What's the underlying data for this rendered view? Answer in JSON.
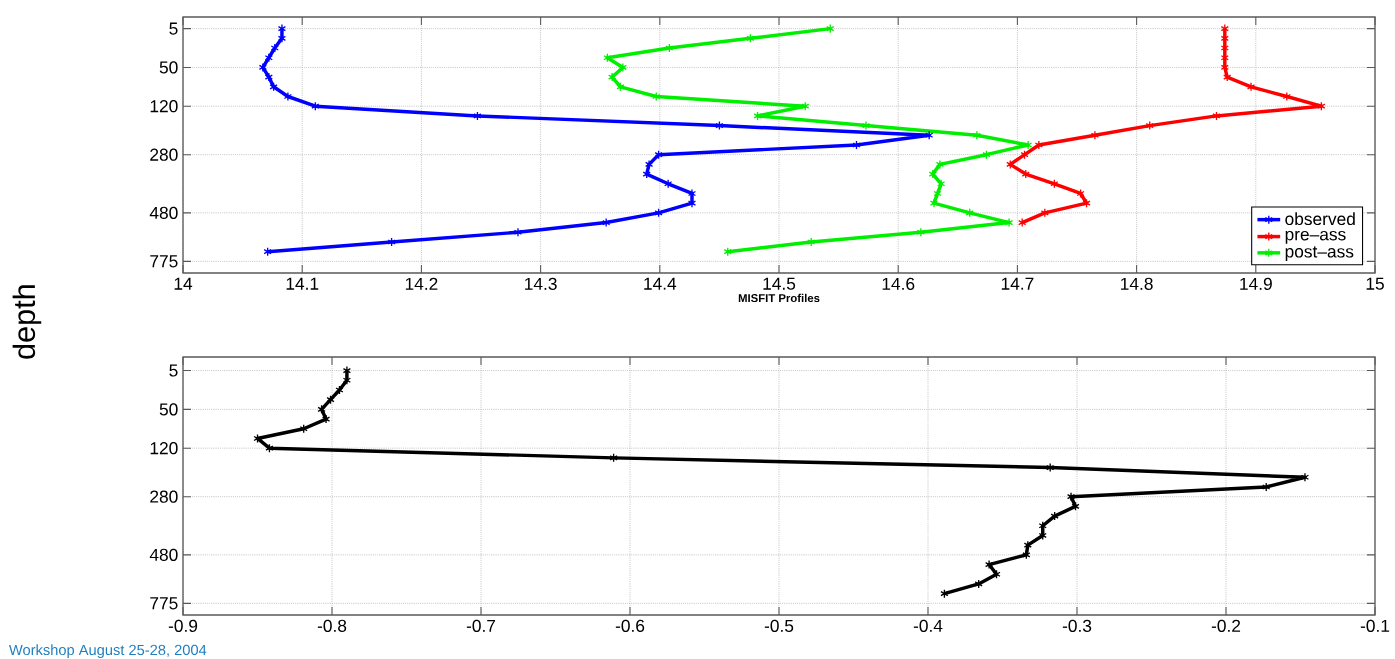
{
  "chart_data": [
    {
      "type": "line",
      "orientation": "horizontal",
      "xlabel": "MISFIT Profiles",
      "ylabel": "depth",
      "xlim": [
        14,
        15
      ],
      "xticks": [
        14,
        14.1,
        14.2,
        14.3,
        14.4,
        14.5,
        14.6,
        14.7,
        14.8,
        14.9,
        15
      ],
      "categories": [
        "5",
        null,
        null,
        null,
        "50",
        null,
        null,
        null,
        "120",
        null,
        null,
        null,
        null,
        "280",
        null,
        null,
        null,
        null,
        null,
        "480",
        null,
        null,
        null,
        null,
        "775"
      ],
      "grid": true,
      "legend": "bottom right",
      "marker": "cross",
      "line_style": "solid",
      "series": [
        {
          "name": "observed",
          "color": "#0000ff",
          "values": [
            14.083,
            14.083,
            14.077,
            14.072,
            14.067,
            14.072,
            14.076,
            14.088,
            14.111,
            14.247,
            14.45,
            14.626,
            14.565,
            14.399,
            14.391,
            14.389,
            14.407,
            14.427,
            14.427,
            14.399,
            14.355,
            14.281,
            14.175,
            14.071,
            null
          ]
        },
        {
          "name": "pre–ass",
          "color": "#ff0000",
          "values": [
            14.874,
            14.874,
            14.874,
            14.874,
            14.874,
            14.876,
            14.896,
            14.926,
            14.955,
            14.867,
            14.811,
            14.765,
            14.718,
            14.706,
            14.694,
            14.707,
            14.731,
            14.753,
            14.758,
            14.723,
            14.704,
            null,
            null,
            null,
            null
          ]
        },
        {
          "name": "post–ass",
          "color": "#00ee00",
          "values": [
            14.543,
            14.476,
            14.408,
            14.356,
            14.369,
            14.36,
            14.367,
            14.397,
            14.522,
            14.482,
            14.573,
            14.666,
            14.709,
            14.674,
            14.635,
            14.629,
            14.636,
            14.633,
            14.63,
            14.66,
            14.693,
            14.619,
            14.527,
            14.457,
            null
          ]
        }
      ]
    },
    {
      "type": "line",
      "orientation": "horizontal",
      "annotations": [
        "Workshop August 25-28, 2004"
      ],
      "xlim": [
        -0.9,
        -0.1
      ],
      "xticks": [
        -0.9,
        -0.8,
        -0.7,
        -0.6,
        -0.5,
        -0.4,
        -0.3,
        -0.2,
        -0.1
      ],
      "categories": [
        "5",
        null,
        null,
        null,
        "50",
        null,
        null,
        null,
        "120",
        null,
        null,
        null,
        null,
        "280",
        null,
        null,
        null,
        null,
        null,
        "480",
        null,
        null,
        null,
        null,
        "775"
      ],
      "grid": true,
      "marker": "cross",
      "line_style": "solid",
      "series": [
        {
          "color": "#000000",
          "values": [
            -0.79,
            -0.79,
            -0.795,
            -0.801,
            -0.807,
            -0.804,
            -0.819,
            -0.85,
            -0.842,
            -0.611,
            -0.318,
            -0.147,
            -0.173,
            -0.304,
            -0.301,
            -0.315,
            -0.323,
            -0.323,
            -0.333,
            -0.334,
            -0.359,
            -0.354,
            -0.366,
            -0.389,
            null
          ]
        }
      ]
    }
  ]
}
